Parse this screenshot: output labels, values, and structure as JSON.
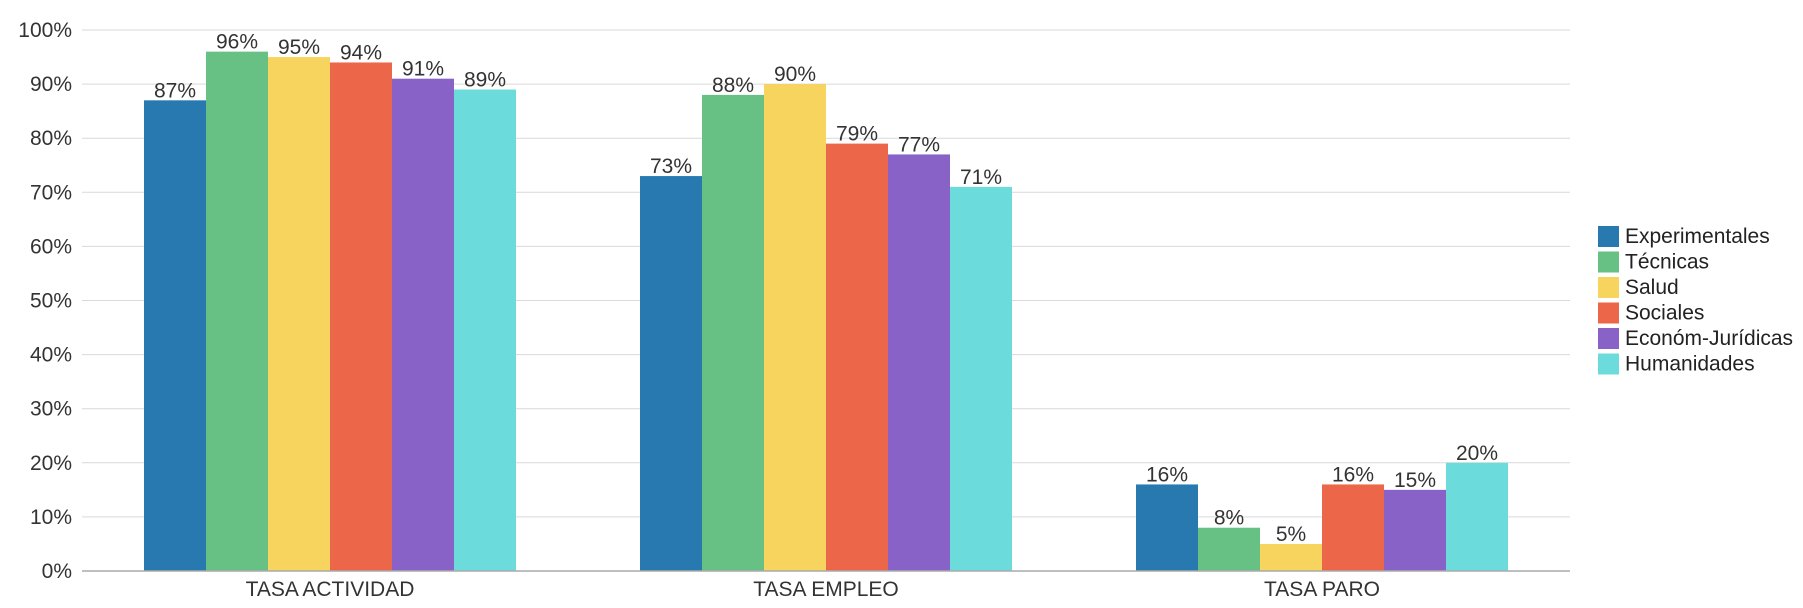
{
  "chart_data": {
    "type": "bar",
    "categories": [
      "TASA ACTIVIDAD",
      "TASA EMPLEO",
      "TASA PARO"
    ],
    "series": [
      {
        "name": "Experimentales",
        "color": "#2779b0",
        "values": [
          87,
          73,
          16
        ]
      },
      {
        "name": "Técnicas",
        "color": "#67c184",
        "values": [
          96,
          88,
          8
        ]
      },
      {
        "name": "Salud",
        "color": "#f7d45e",
        "values": [
          95,
          90,
          5
        ]
      },
      {
        "name": "Sociales",
        "color": "#ec6749",
        "values": [
          94,
          79,
          16
        ]
      },
      {
        "name": "Económ-Jurídicas",
        "color": "#8862c6",
        "values": [
          91,
          77,
          15
        ]
      },
      {
        "name": "Humanidades",
        "color": "#6cdbdb",
        "values": [
          89,
          71,
          20
        ]
      }
    ],
    "ylim": [
      0,
      100
    ],
    "yticks": [
      "0%",
      "10%",
      "20%",
      "30%",
      "40%",
      "50%",
      "60%",
      "70%",
      "80%",
      "90%",
      "100%"
    ],
    "value_suffix": "%",
    "grid": true,
    "legend_position": "right",
    "title": "",
    "xlabel": "",
    "ylabel": ""
  }
}
